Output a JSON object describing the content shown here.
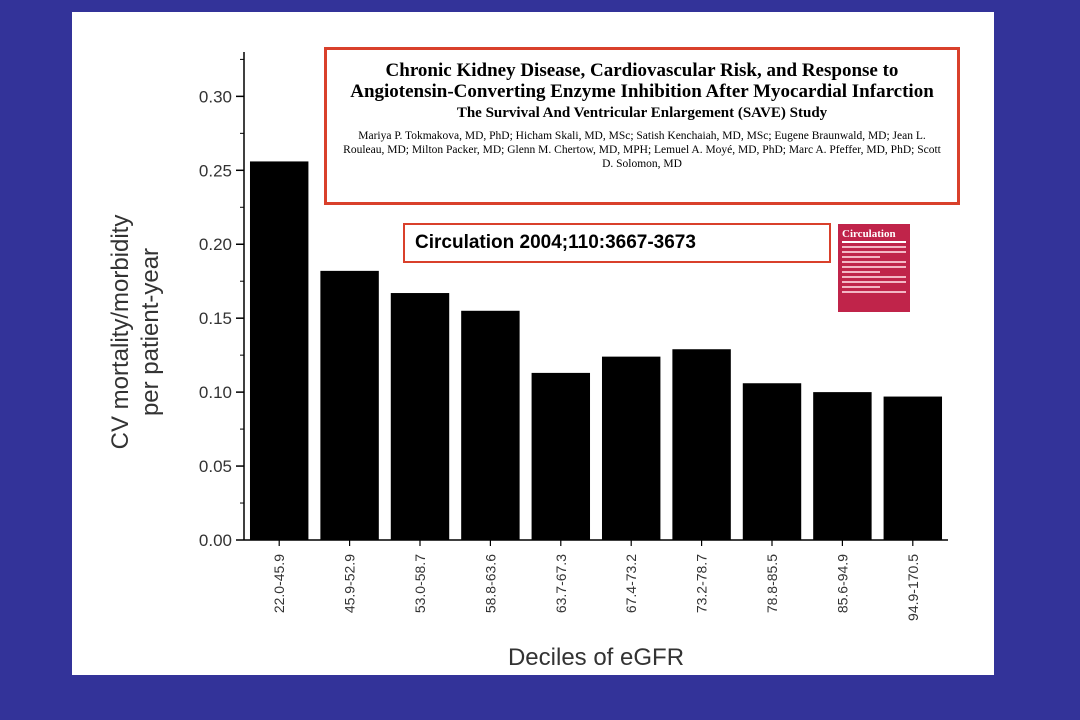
{
  "paper": {
    "title": "Chronic Kidney Disease, Cardiovascular Risk, and Response to Angiotensin-Converting Enzyme Inhibition After Myocardial Infarction",
    "subtitle": "The Survival And Ventricular Enlargement (SAVE) Study",
    "authors": "Mariya P. Tokmakova, MD, PhD; Hicham Skali, MD, MSc; Satish Kenchaiah, MD, MSc; Eugene Braunwald, MD; Jean L. Rouleau, MD; Milton Packer, MD; Glenn M. Chertow, MD, MPH; Lemuel A. Moyé, MD, PhD; Marc A. Pfeffer, MD, PhD; Scott D. Solomon, MD"
  },
  "citation": "Circulation 2004;110:3667-3673",
  "journal_cover": {
    "name": "Circulation"
  },
  "colors": {
    "background": "#333399",
    "box_border": "#d9402b",
    "bars": "#000000",
    "cover": "#c0244a"
  },
  "chart_data": {
    "type": "bar",
    "xlabel": "Deciles of eGFR",
    "ylabel": [
      "CV mortality/morbidity",
      "per patient-year"
    ],
    "categories": [
      "22.0-45.9",
      "45.9-52.9",
      "53.0-58.7",
      "58.8-63.6",
      "63.7-67.3",
      "67.4-73.2",
      "73.2-78.7",
      "78.8-85.5",
      "85.6-94.9",
      "94.9-170.5"
    ],
    "values": [
      0.256,
      0.182,
      0.167,
      0.155,
      0.113,
      0.124,
      0.129,
      0.106,
      0.1,
      0.097
    ],
    "ylim": [
      0,
      0.33
    ],
    "yticks": [
      "0.00",
      "0.05",
      "0.10",
      "0.15",
      "0.20",
      "0.25",
      "0.30"
    ],
    "grid": false
  }
}
